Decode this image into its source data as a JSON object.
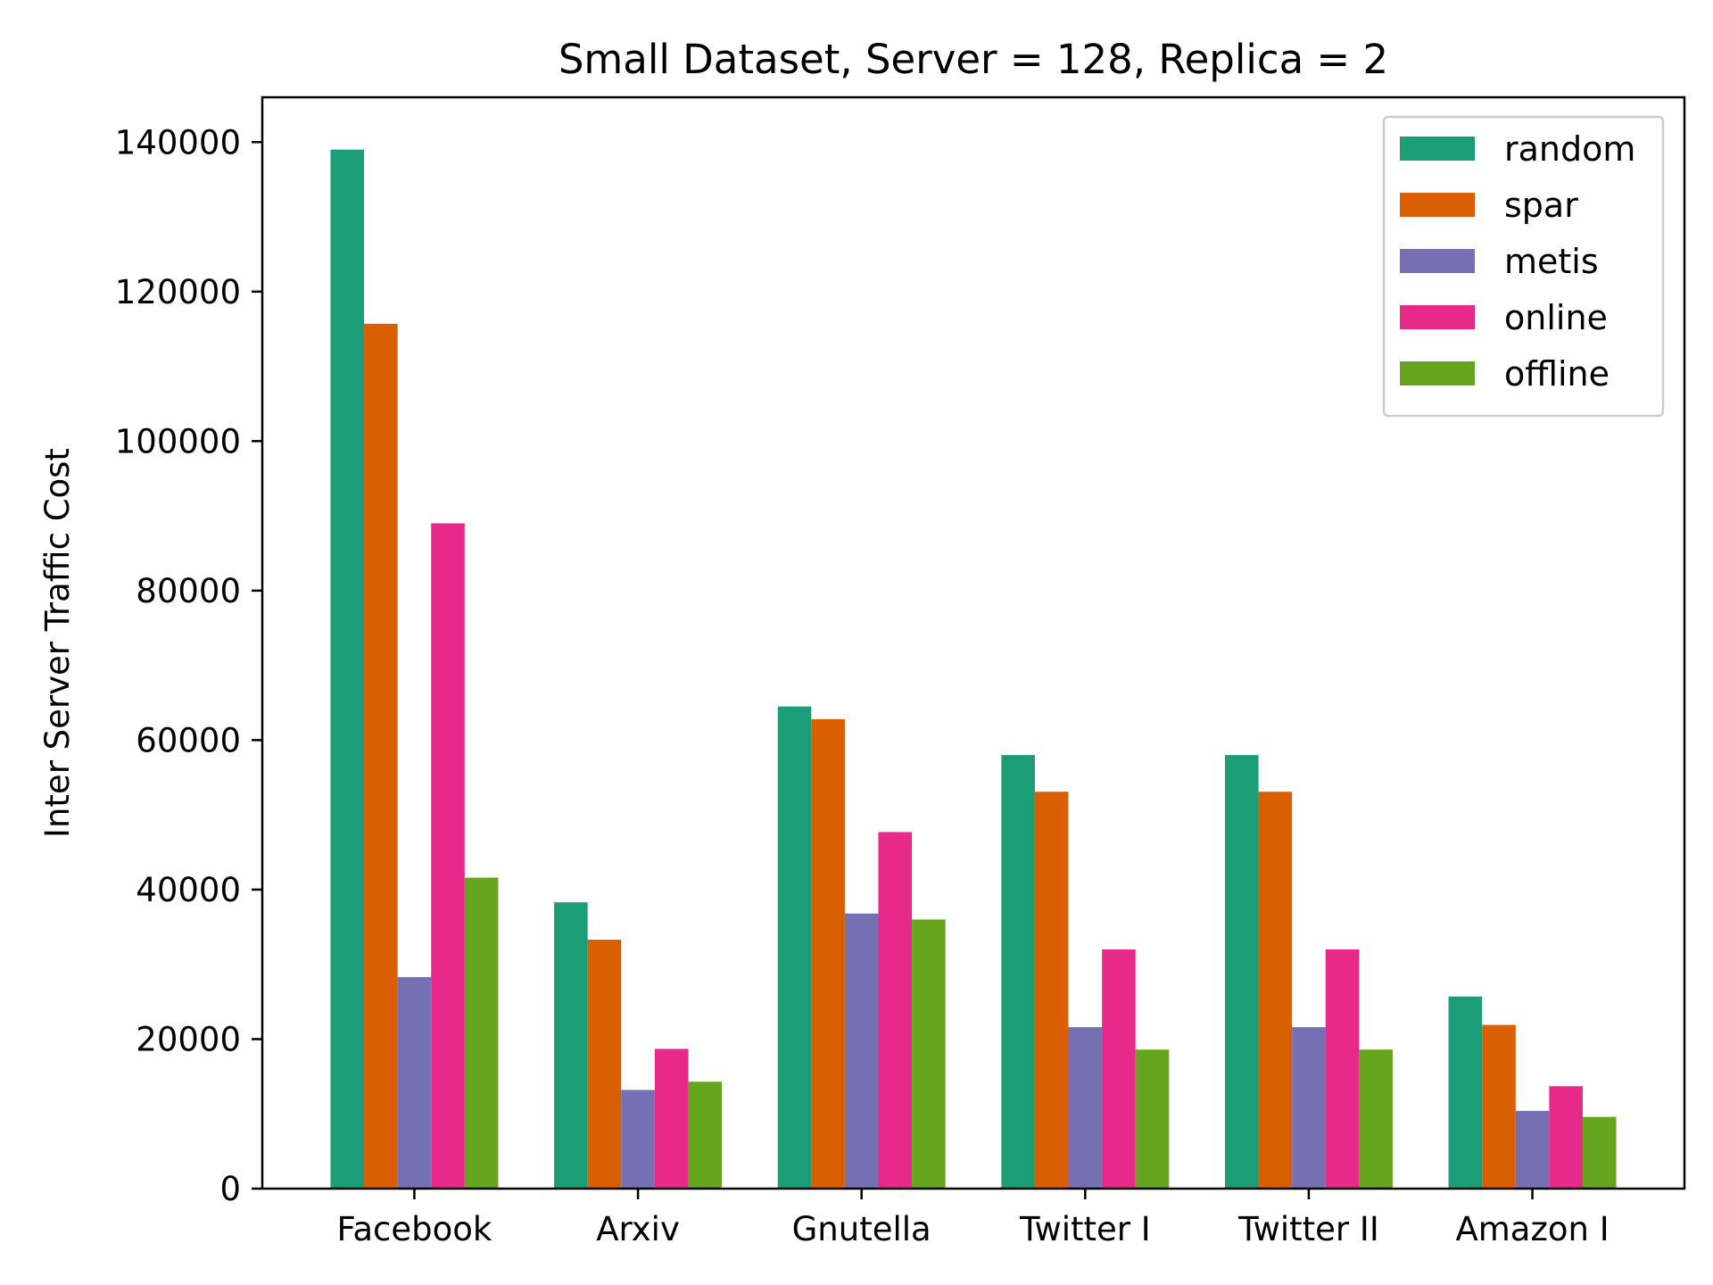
{
  "chart_data": {
    "type": "bar",
    "title": "Small Dataset, Server = 128, Replica = 2",
    "xlabel": "",
    "ylabel": "Inter Server Traffic Cost",
    "categories": [
      "Facebook",
      "Arxiv",
      "Gnutella",
      "Twitter I",
      "Twitter II",
      "Amazon I"
    ],
    "ylim": [
      0,
      146000
    ],
    "yticks": [
      0,
      20000,
      40000,
      60000,
      80000,
      100000,
      120000,
      140000
    ],
    "ytick_labels": [
      "0",
      "20000",
      "40000",
      "60000",
      "80000",
      "100000",
      "120000",
      "140000"
    ],
    "legend_position": "top-right",
    "grid": false,
    "series": [
      {
        "name": "random",
        "color": "#1b9e77",
        "values": [
          139000,
          38300,
          64500,
          58000,
          58000,
          25700
        ]
      },
      {
        "name": "spar",
        "color": "#d95f02",
        "values": [
          115700,
          33300,
          62800,
          53100,
          53100,
          21900
        ]
      },
      {
        "name": "metis",
        "color": "#7570b3",
        "values": [
          28300,
          13200,
          36800,
          21600,
          21600,
          10400
        ]
      },
      {
        "name": "online",
        "color": "#e7298a",
        "values": [
          89000,
          18700,
          47700,
          32000,
          32000,
          13700
        ]
      },
      {
        "name": "offline",
        "color": "#66a61e",
        "values": [
          41600,
          14300,
          36000,
          18600,
          18600,
          9600
        ]
      }
    ]
  }
}
